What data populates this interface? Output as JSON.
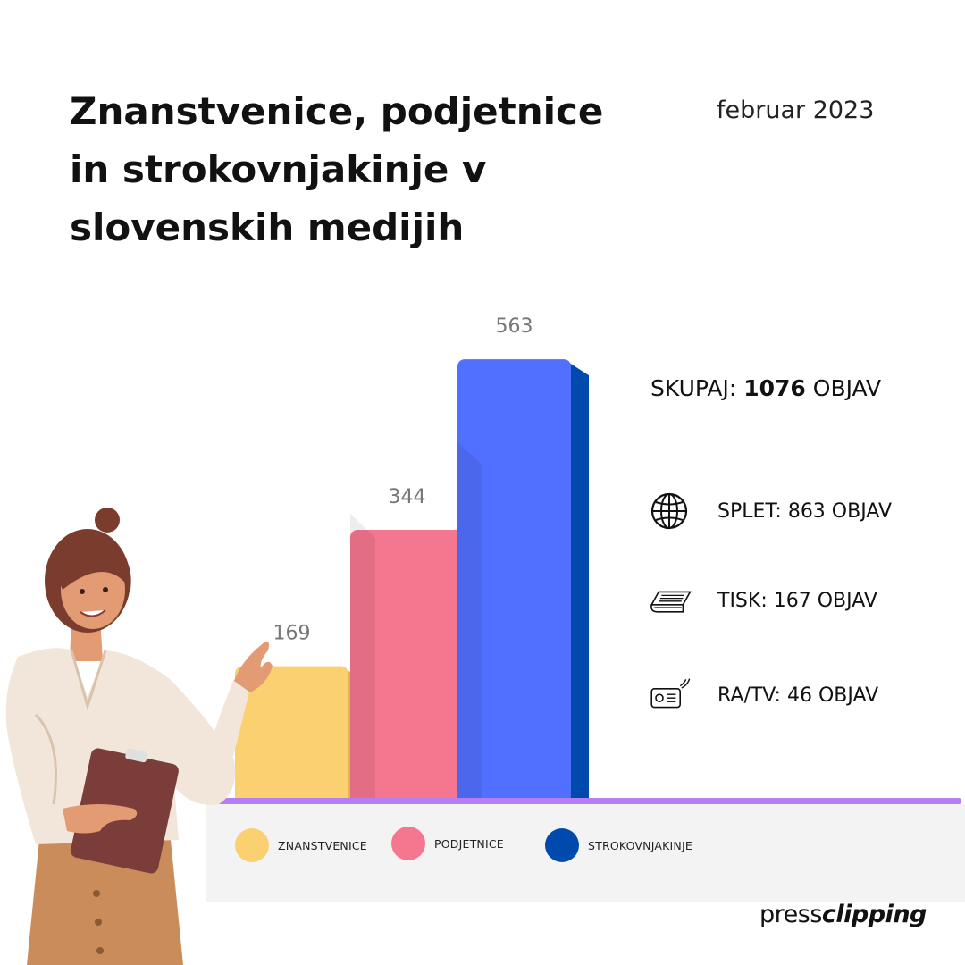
{
  "title_lines": [
    "Znanstvenice, podjetnice",
    "in strokovnjakinje v",
    "slovenskih medijih"
  ],
  "date": "februar 2023",
  "total": {
    "prefix": "SKUPAJ:",
    "value": "1076",
    "suffix": "OBJAV"
  },
  "media": [
    {
      "icon": "globe-icon",
      "label": "SPLET: 863 OBJAV"
    },
    {
      "icon": "newspaper-icon",
      "label": "TISK: 167 OBJAV"
    },
    {
      "icon": "radio-icon",
      "label": "RA/TV: 46 OBJAV"
    }
  ],
  "chart_data": {
    "type": "bar",
    "categories": [
      "ZNANSTVENICE",
      "PODJETNICE",
      "STROKOVNJAKINJE"
    ],
    "values": [
      169,
      344,
      563
    ],
    "data_labels": [
      "169",
      "344",
      "563"
    ],
    "colors": [
      "#fbd070",
      "#f5768f",
      "#5170ff"
    ],
    "side_colors": [
      "#e3b64e",
      "#d95e7c",
      "#004aad"
    ],
    "legend": [
      "ZNANSTVENICE",
      "PODJETNICE",
      "STROKOVNJAKINJE"
    ],
    "legend_placement": "bottom",
    "grid": false,
    "baseline_color": "#b57ef2"
  },
  "logo": {
    "light": "press",
    "bold": "clipping"
  }
}
